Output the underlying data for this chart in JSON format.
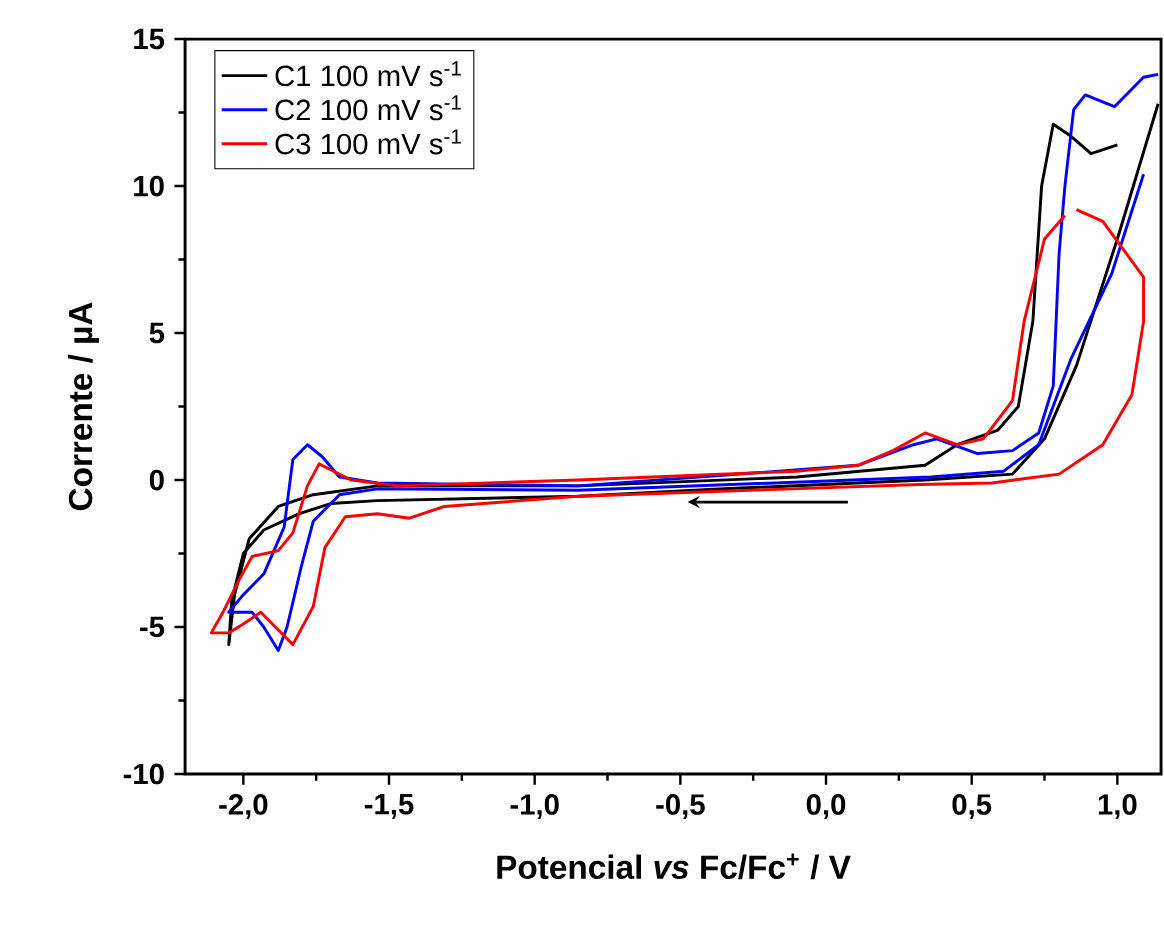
{
  "chart_data": {
    "type": "line",
    "xlabel": "Potencial *vs* Fc/Fc$^{+}$ / V",
    "ylabel": "Corrente / µA",
    "xlim": [
      -2.2,
      1.15
    ],
    "ylim": [
      -10,
      15
    ],
    "xticks": [
      {
        "value": -2,
        "label": "-2,0"
      },
      {
        "value": -1.5,
        "label": "-1,5"
      },
      {
        "value": -1,
        "label": "-1,0"
      },
      {
        "value": -0.5,
        "label": "-0,5"
      },
      {
        "value": 0,
        "label": "0,0"
      },
      {
        "value": 0.5,
        "label": "0,5"
      },
      {
        "value": 1,
        "label": "1,0"
      }
    ],
    "yticks": [
      -10,
      -5,
      0,
      5,
      10,
      15
    ],
    "legend": "top left",
    "marker": "none",
    "line_style": "solid",
    "grid": false,
    "series": [
      {
        "name": "C1 100 mV s$^{-1}$",
        "color": "#000000",
        "x": [
          1.14,
          1.0,
          0.86,
          0.75,
          0.64,
          0.34,
          -0.35,
          -0.85,
          -1.54,
          -1.7,
          -1.81,
          -1.93,
          -2.0,
          -2.04,
          -2.05,
          -2.03,
          -1.98,
          -1.88,
          -1.76,
          -1.54,
          -0.85,
          -0.1,
          0.34,
          0.45,
          0.59,
          0.66,
          0.71,
          0.74,
          0.78,
          0.84,
          0.91,
          1.0
        ],
        "values": [
          12.8,
          8.2,
          3.9,
          1.4,
          0.2,
          0.0,
          -0.3,
          -0.55,
          -0.7,
          -0.8,
          -1.15,
          -1.7,
          -2.5,
          -4.1,
          -5.6,
          -3.9,
          -2.0,
          -0.9,
          -0.5,
          -0.2,
          -0.2,
          0.1,
          0.5,
          1.2,
          1.7,
          2.5,
          5.4,
          10.0,
          12.1,
          11.7,
          11.1,
          11.4
        ]
      },
      {
        "name": "C2 100 mV s$^{-1}$",
        "color": "#0000ff",
        "x": [
          1.14,
          1.09,
          0.99,
          0.89,
          0.85,
          0.82,
          0.8,
          0.78,
          0.73,
          0.64,
          0.52,
          0.38,
          0.3,
          0.11,
          -0.85,
          -1.54,
          -1.67,
          -1.73,
          -1.78,
          -1.83,
          -1.86,
          -1.93,
          -2.0,
          -2.05,
          -1.97,
          -1.93,
          -1.88,
          -1.85,
          -1.8,
          -1.76,
          -1.67,
          -1.54,
          -0.85,
          0.36,
          0.61,
          0.73,
          0.84,
          0.98,
          1.09
        ],
        "values": [
          13.8,
          13.7,
          12.7,
          13.1,
          12.6,
          10.0,
          7.7,
          3.2,
          1.6,
          1.0,
          0.9,
          1.4,
          1.2,
          0.5,
          -0.2,
          -0.1,
          0.1,
          0.8,
          1.2,
          0.7,
          -1.6,
          -3.2,
          -3.9,
          -4.5,
          -4.5,
          -5.0,
          -5.8,
          -5.0,
          -2.9,
          -1.4,
          -0.5,
          -0.3,
          -0.35,
          0.1,
          0.3,
          1.2,
          4.1,
          7.0,
          10.4
        ]
      },
      {
        "name": "C3 100 mV s$^{-1}$",
        "color": "#ff0000",
        "x": [
          0.86,
          0.95,
          1.09,
          1.09,
          1.05,
          0.95,
          0.8,
          0.57,
          0.32,
          -0.85,
          -1.31,
          -1.43,
          -1.54,
          -1.65,
          -1.72,
          -1.76,
          -1.83,
          -1.88,
          -1.94,
          -2.0,
          -2.05,
          -2.11,
          -2.07,
          -2.02,
          -1.97,
          -1.88,
          -1.83,
          -1.78,
          -1.74,
          -1.69,
          -1.63,
          -1.47,
          -0.85,
          -0.1,
          0.11,
          0.23,
          0.34,
          0.45,
          0.54,
          0.64,
          0.68,
          0.75,
          0.82
        ],
        "values": [
          9.2,
          8.8,
          6.9,
          5.4,
          2.9,
          1.2,
          0.2,
          -0.1,
          -0.15,
          -0.55,
          -0.9,
          -1.3,
          -1.15,
          -1.25,
          -2.3,
          -4.3,
          -5.6,
          -5.1,
          -4.5,
          -4.9,
          -5.2,
          -5.2,
          -4.5,
          -3.5,
          -2.6,
          -2.4,
          -1.8,
          -0.2,
          0.55,
          0.3,
          0.0,
          -0.2,
          0.0,
          0.3,
          0.5,
          1.0,
          1.6,
          1.2,
          1.4,
          2.7,
          5.4,
          8.2,
          9.0
        ]
      }
    ]
  }
}
